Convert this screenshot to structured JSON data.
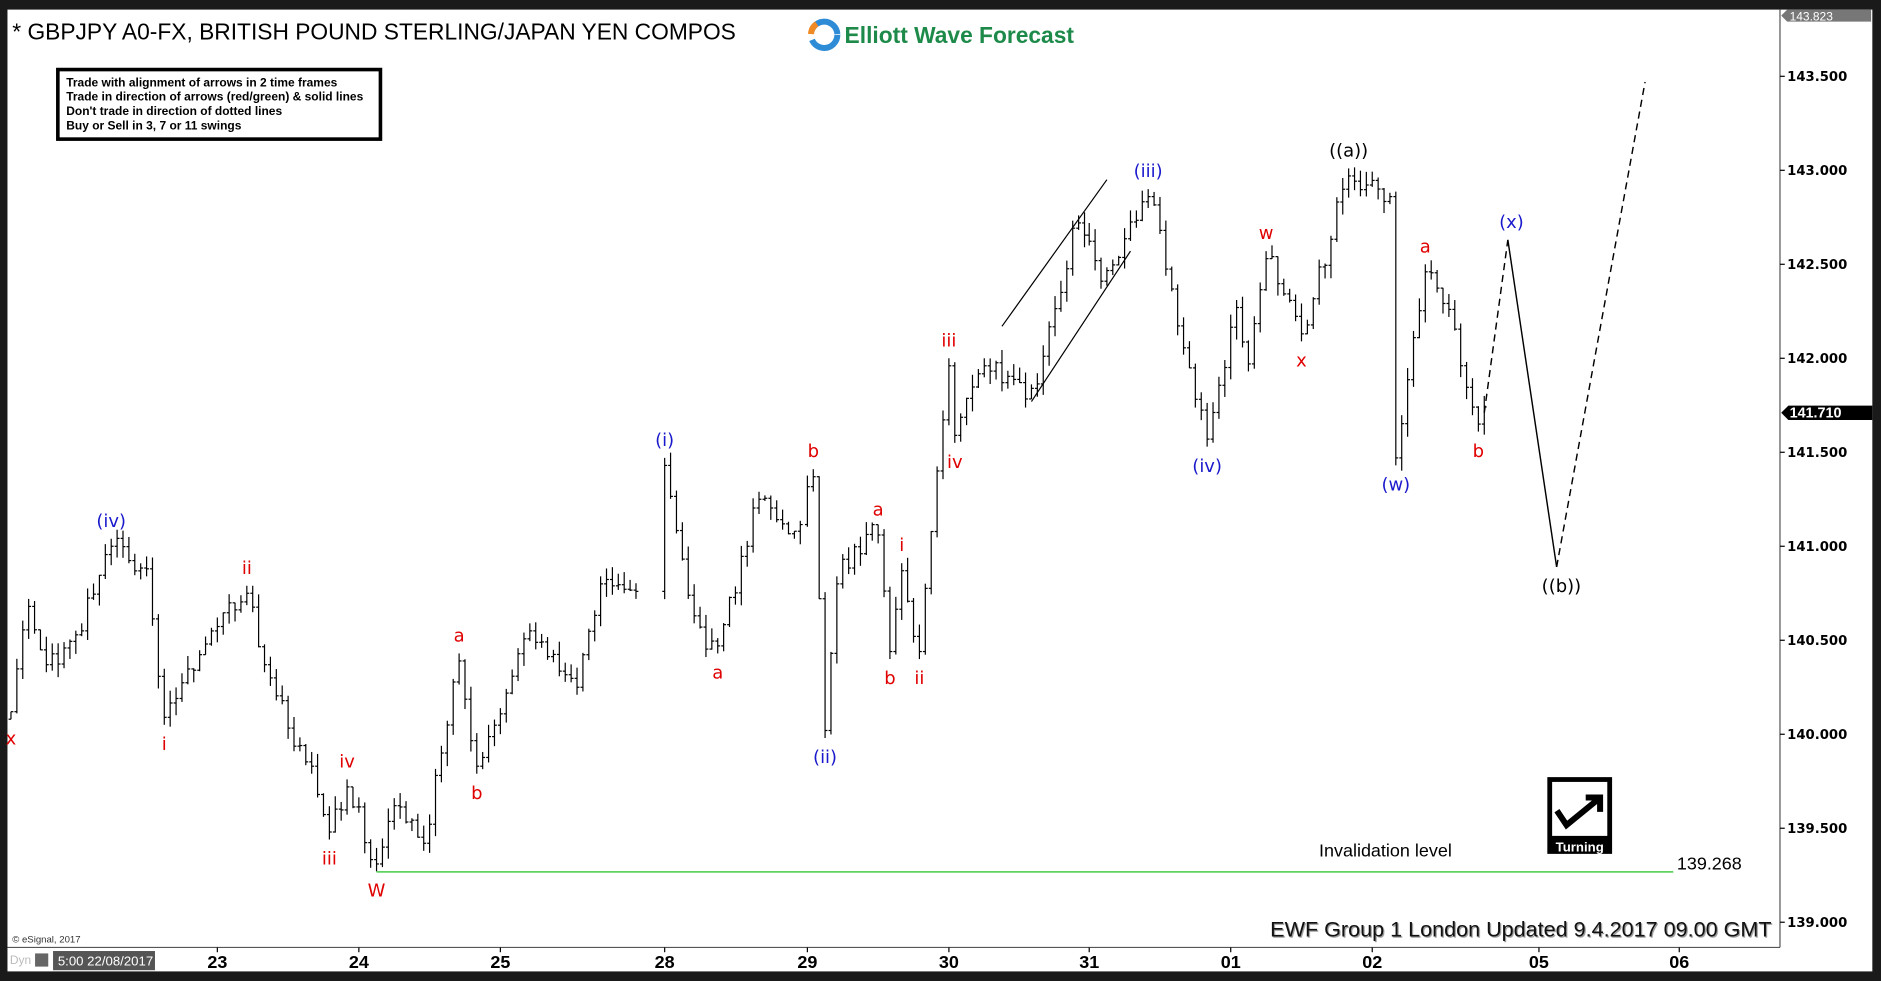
{
  "header": {
    "title": "* GBPJPY A0-FX, BRITISH POUND STERLING/JAPAN YEN COMPOS",
    "logo_text": "Elliott Wave Forecast"
  },
  "rules_box": [
    "Trade with alignment of arrows in 2 time frames",
    "Trade in direction of arrows (red/green) & solid lines",
    "Don't trade in direction of dotted lines",
    "Buy or Sell in 3, 7 or 11 swings"
  ],
  "footer": {
    "updated": "EWF Group 1 London Updated 9.4.2017 09.00 GMT",
    "copyright": "© eSignal, 2017",
    "dyn": "Dyn",
    "cursor_date": "5:00 22/08/2017"
  },
  "turning_badge": {
    "label": "Turning",
    "icon": "check-arrow-up-right-icon"
  },
  "colors": {
    "red": "#e00000",
    "blue": "#1a1acc",
    "black": "#000000",
    "invalidation": "#5fd35f"
  },
  "chart_data": {
    "type": "ohlc",
    "interval": "1 hour",
    "x_ticks": [
      "23",
      "24",
      "25",
      "28",
      "29",
      "30",
      "31",
      "01",
      "02",
      "05",
      "06"
    ],
    "y_ticks": [
      "143.500",
      "143.000",
      "142.500",
      "142.000",
      "141.500",
      "141.000",
      "140.500",
      "140.000",
      "139.500",
      "139.000"
    ],
    "ylim": [
      138.85,
      143.823
    ],
    "high_tag": "143.823",
    "last_price_tag": "141.710",
    "last_price": 141.71,
    "swings": [
      {
        "t": "21 13:00",
        "p": 140.08
      },
      {
        "t": "21 16:00",
        "p": 140.72
      },
      {
        "t": "21 19:00",
        "p": 140.33
      },
      {
        "t": "22 01:00",
        "p": 140.59
      },
      {
        "t": "22 06:00",
        "p": 141.04
      },
      {
        "t": "22 12:00",
        "p": 140.84
      },
      {
        "t": "22 15:00",
        "p": 140.05
      },
      {
        "t": "22 22:00",
        "p": 140.52
      },
      {
        "t": "23 05:00",
        "p": 140.79
      },
      {
        "t": "23 08:00",
        "p": 140.33
      },
      {
        "t": "23 16:00",
        "p": 139.79
      },
      {
        "t": "23 19:00",
        "p": 139.44
      },
      {
        "t": "23 22:00",
        "p": 139.76
      },
      {
        "t": "24 03:00",
        "p": 139.27
      },
      {
        "t": "24 06:00",
        "p": 139.66
      },
      {
        "t": "24 11:00",
        "p": 139.38
      },
      {
        "t": "24 17:00",
        "p": 140.43
      },
      {
        "t": "24 20:00",
        "p": 139.79
      },
      {
        "t": "25 05:00",
        "p": 140.59
      },
      {
        "t": "25 13:00",
        "p": 140.21
      },
      {
        "t": "25 17:00",
        "p": 140.84
      },
      {
        "t": "25 23:00",
        "p": 140.72
      },
      {
        "t": "28 00:00",
        "p": 141.47
      },
      {
        "t": "28 05:00",
        "p": 140.59
      },
      {
        "t": "28 09:00",
        "p": 140.43
      },
      {
        "t": "28 16:00",
        "p": 141.29
      },
      {
        "t": "28 22:00",
        "p": 141.04
      },
      {
        "t": "29 01:00",
        "p": 141.41
      },
      {
        "t": "29 03:00",
        "p": 139.98
      },
      {
        "t": "29 05:00",
        "p": 140.84
      },
      {
        "t": "29 12:00",
        "p": 141.1
      },
      {
        "t": "29 14:00",
        "p": 140.4
      },
      {
        "t": "29 16:00",
        "p": 140.91
      },
      {
        "t": "29 19:00",
        "p": 140.4
      },
      {
        "t": "30 00:00",
        "p": 142.0
      },
      {
        "t": "30 01:00",
        "p": 141.55
      },
      {
        "t": "30 06:00",
        "p": 142.0
      },
      {
        "t": "30 14:00",
        "p": 141.8
      },
      {
        "t": "30 22:00",
        "p": 142.76
      },
      {
        "t": "31 02:00",
        "p": 142.37
      },
      {
        "t": "31 10:00",
        "p": 142.9
      },
      {
        "t": "31 20:00",
        "p": 141.53
      },
      {
        "t": "01 01:00",
        "p": 142.31
      },
      {
        "t": "01 03:00",
        "p": 141.93
      },
      {
        "t": "01 06:00",
        "p": 142.57
      },
      {
        "t": "01 12:00",
        "p": 142.09
      },
      {
        "t": "01 20:00",
        "p": 143.01
      },
      {
        "t": "02 03:00",
        "p": 142.82
      },
      {
        "t": "02 04:00",
        "p": 141.43
      },
      {
        "t": "02 09:00",
        "p": 142.5
      },
      {
        "t": "02 13:00",
        "p": 142.22
      },
      {
        "t": "02 18:00",
        "p": 141.61
      },
      {
        "t": "02 19:00",
        "p": 141.71
      }
    ],
    "wave_labels": [
      {
        "text": "x",
        "at": 0,
        "pos": "below",
        "color": "red"
      },
      {
        "text": "(iv)",
        "at": 4,
        "pos": "above",
        "color": "blue"
      },
      {
        "text": "i",
        "at": 6,
        "pos": "below",
        "color": "red"
      },
      {
        "text": "ii",
        "at": 8,
        "pos": "above",
        "color": "red"
      },
      {
        "text": "iii",
        "at": 11,
        "pos": "below",
        "color": "red"
      },
      {
        "text": "iv",
        "at": 12,
        "pos": "above",
        "color": "red"
      },
      {
        "text": "W",
        "at": 13,
        "pos": "below",
        "color": "red"
      },
      {
        "text": "a",
        "at": 16,
        "pos": "above",
        "color": "red"
      },
      {
        "text": "b",
        "at": 17,
        "pos": "below",
        "color": "red"
      },
      {
        "text": "(i)",
        "at": 22,
        "pos": "above",
        "color": "blue"
      },
      {
        "text": "a",
        "at": 24,
        "pos": "below",
        "color": "red"
      },
      {
        "text": "b",
        "at": 27,
        "pos": "above",
        "color": "red"
      },
      {
        "text": "(ii)",
        "at": 28,
        "pos": "below",
        "color": "blue"
      },
      {
        "text": "a",
        "at": 30,
        "pos": "above",
        "color": "red"
      },
      {
        "text": "b",
        "at": 31,
        "pos": "below",
        "color": "red"
      },
      {
        "text": "i",
        "at": 32,
        "pos": "above",
        "color": "red"
      },
      {
        "text": "ii",
        "at": 33,
        "pos": "below",
        "color": "red"
      },
      {
        "text": "iii",
        "at": 34,
        "pos": "above",
        "color": "red"
      },
      {
        "text": "iv",
        "at": 35,
        "pos": "below",
        "color": "red"
      },
      {
        "text": "(iii)",
        "at": 40,
        "pos": "above",
        "color": "blue"
      },
      {
        "text": "(iv)",
        "at": 41,
        "pos": "below",
        "color": "blue"
      },
      {
        "text": "w",
        "at": 44,
        "pos": "above",
        "color": "red"
      },
      {
        "text": "x",
        "at": 45,
        "pos": "below",
        "color": "red"
      },
      {
        "text": "((a))",
        "at": 46,
        "pos": "above",
        "color": "black"
      },
      {
        "text": "(w)",
        "at": 48,
        "pos": "below",
        "color": "blue"
      },
      {
        "text": "a",
        "at": 49,
        "pos": "above",
        "color": "red"
      },
      {
        "text": "b",
        "at": 51,
        "pos": "below",
        "color": "red"
      }
    ],
    "projection": [
      {
        "t": "02 19:00",
        "p": 141.71,
        "style": "dashed"
      },
      {
        "t": "02 23:00",
        "p": 142.63,
        "style": "solid",
        "label": "(x)",
        "color": "blue",
        "pos": "above"
      },
      {
        "t": "05 03:00",
        "p": 140.89,
        "style": "dashed",
        "label": "((b))",
        "color": "black",
        "pos": "below"
      },
      {
        "t": "05 18:00",
        "p": 143.47
      }
    ],
    "channel": [
      [
        {
          "t": "30 09:00",
          "p": 142.17
        },
        {
          "t": "31 03:00",
          "p": 142.95
        }
      ],
      [
        {
          "t": "30 14:00",
          "p": 141.77
        },
        {
          "t": "31 07:00",
          "p": 142.57
        }
      ]
    ],
    "invalidation": {
      "label": "Invalidation level",
      "value": 139.268,
      "value_label": "139.268",
      "from": "24 03:00",
      "to": "06 00:00"
    }
  }
}
